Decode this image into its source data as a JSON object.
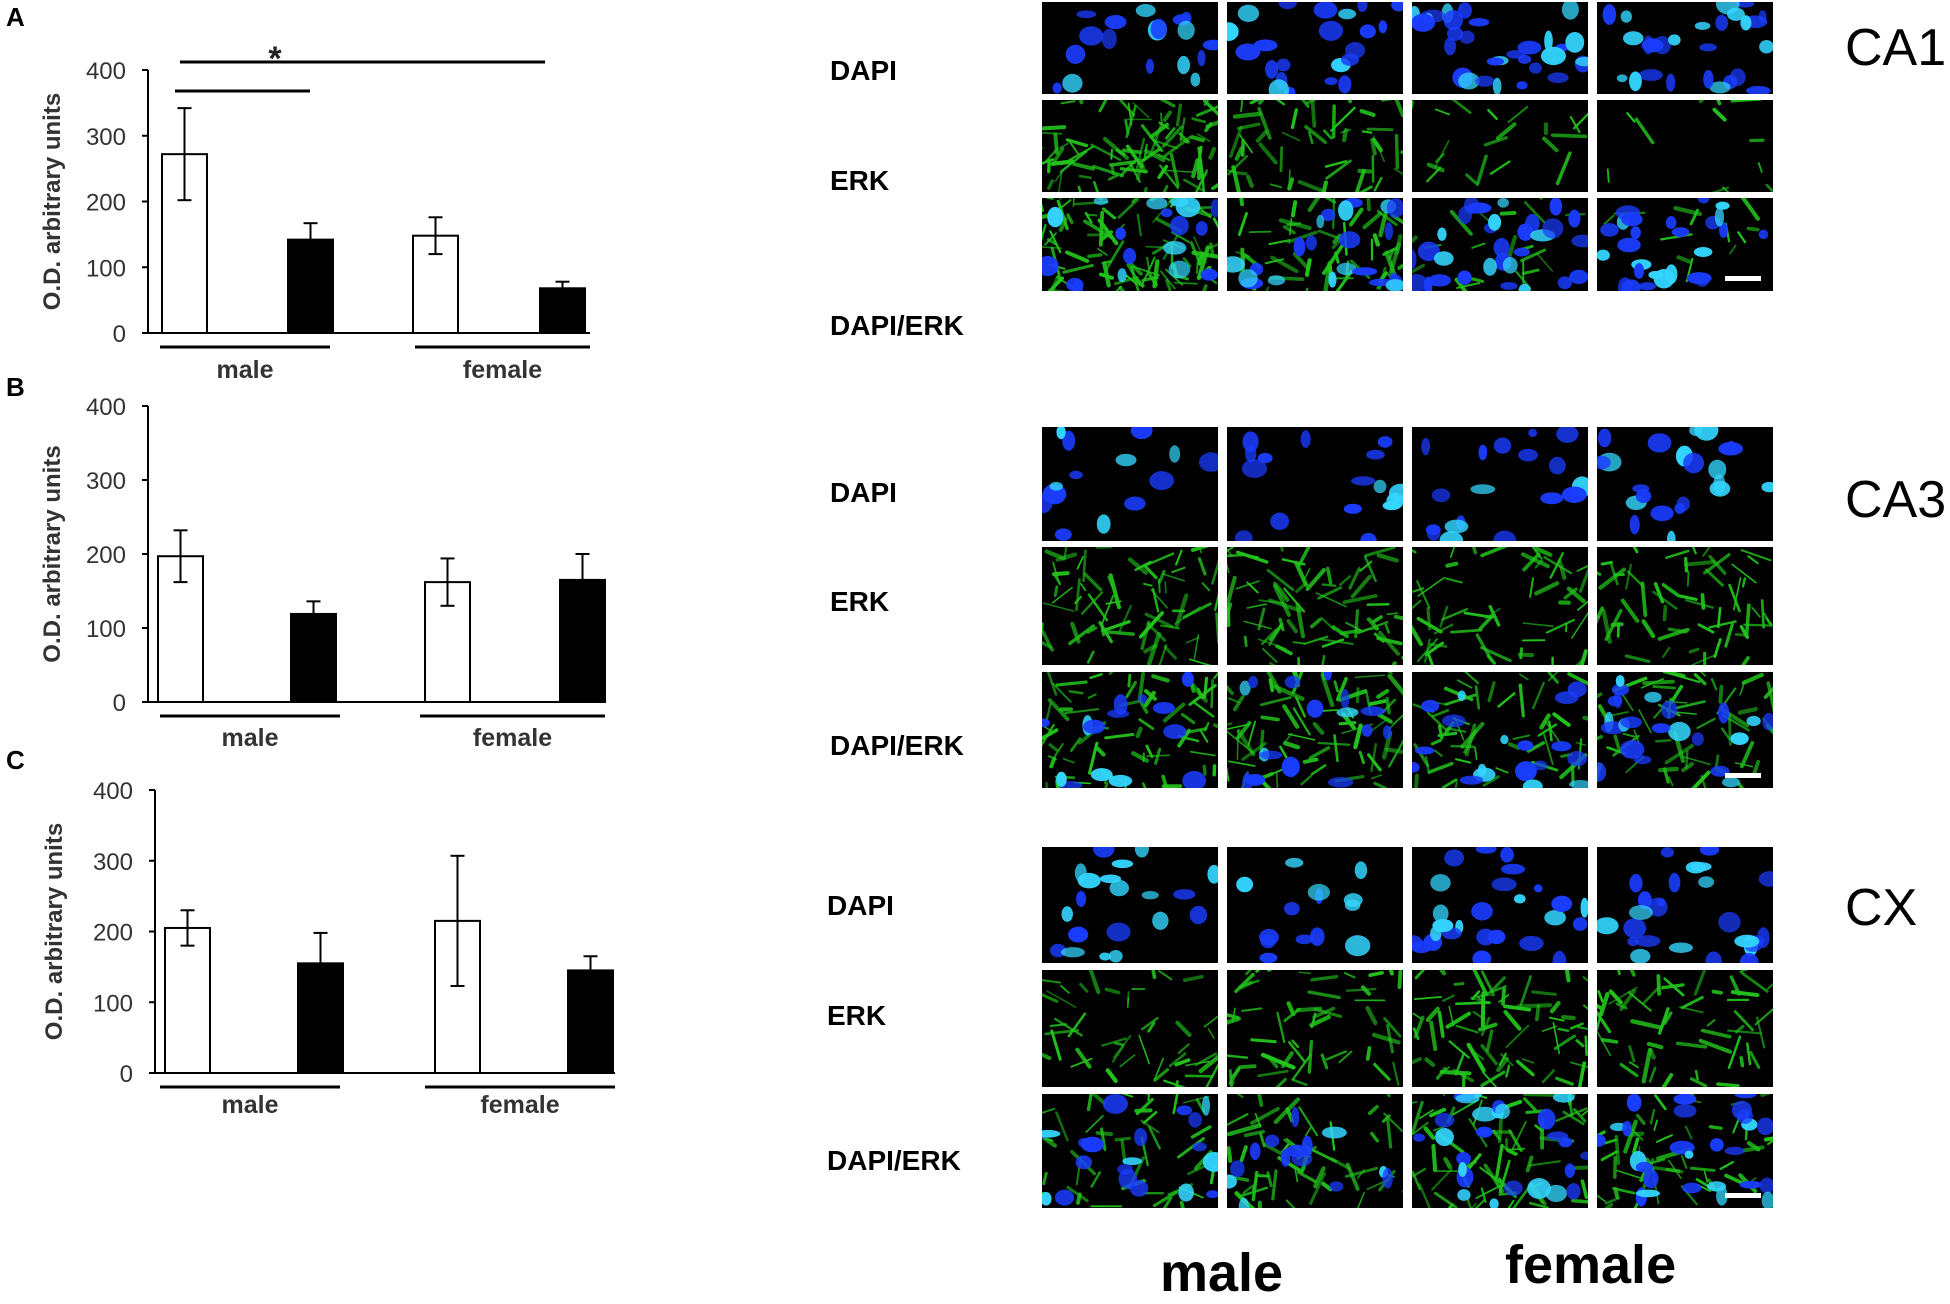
{
  "panels": {
    "a": "A",
    "b": "B",
    "c": "C"
  },
  "chart_data": [
    {
      "type": "bar",
      "panel": "A",
      "ylabel": "O.D. arbitrary units",
      "ylim": [
        0,
        400
      ],
      "yticks": [
        "0",
        "100",
        "200",
        "300",
        "400"
      ],
      "groups": [
        "male",
        "female"
      ],
      "series": [
        {
          "fill": "#ffffff",
          "values": [
            272,
            148
          ],
          "errors": [
            70,
            28
          ]
        },
        {
          "fill": "#000000",
          "values": [
            142,
            68
          ],
          "errors": [
            25,
            10
          ]
        }
      ],
      "annotations": [
        "*"
      ]
    },
    {
      "type": "bar",
      "panel": "B",
      "ylabel": "O.D. arbitrary units",
      "ylim": [
        0,
        400
      ],
      "yticks": [
        "0",
        "100",
        "200",
        "300",
        "400"
      ],
      "groups": [
        "male",
        "female"
      ],
      "series": [
        {
          "fill": "#ffffff",
          "values": [
            197,
            162
          ],
          "errors": [
            35,
            32
          ]
        },
        {
          "fill": "#000000",
          "values": [
            119,
            165
          ],
          "errors": [
            17,
            35
          ]
        }
      ]
    },
    {
      "type": "bar",
      "panel": "C",
      "ylabel": "O.D. arbitrary units",
      "ylim": [
        0,
        400
      ],
      "yticks": [
        "0",
        "100",
        "200",
        "300",
        "400"
      ],
      "groups": [
        "male",
        "female"
      ],
      "series": [
        {
          "fill": "#ffffff",
          "values": [
            205,
            215
          ],
          "errors": [
            25,
            92
          ]
        },
        {
          "fill": "#000000",
          "values": [
            155,
            145
          ],
          "errors": [
            43,
            20
          ]
        }
      ]
    }
  ],
  "micrographs": {
    "regions": [
      "CA1",
      "CA3",
      "CX"
    ],
    "row_labels": [
      "DAPI",
      "ERK",
      "DAPI/ERK"
    ],
    "columns": [
      "male",
      "female"
    ],
    "colors": {
      "background": "#000000",
      "dapi": "#1a3cff",
      "dapi_bright": "#33d6ff",
      "erk": "#22c41c"
    }
  }
}
